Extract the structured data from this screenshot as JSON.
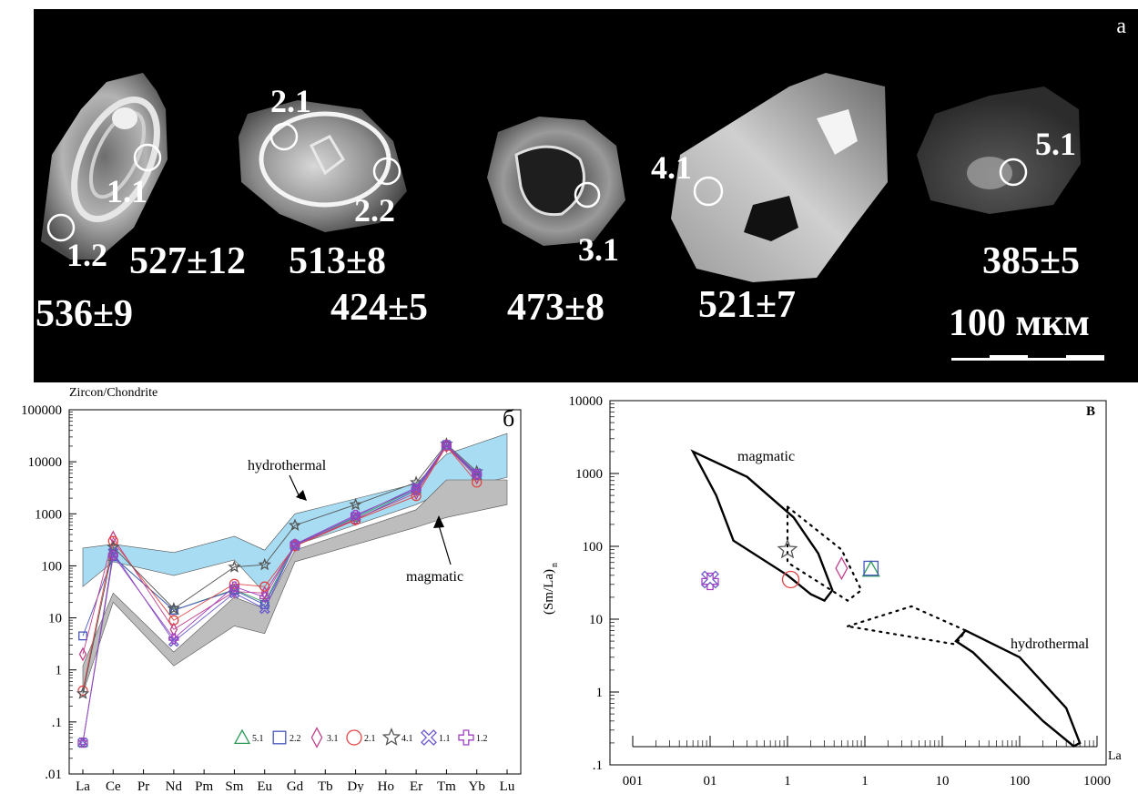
{
  "colors": {
    "hydrothermal_field": "#a8dcf2",
    "magmatic_field": "#bdbdbd",
    "s5_1": "#2e9a58",
    "s2_2": "#4455bb",
    "s3_1": "#c0408a",
    "s2_1": "#e04545",
    "s4_1": "#555555",
    "s1_1": "#6a5acd",
    "s1_2": "#a040c0"
  },
  "panel_a": {
    "letter": "а",
    "scale_bar_label": "100 мкм",
    "grains": [
      {
        "spots": [
          {
            "label": "1.1",
            "age": "527±12"
          },
          {
            "label": "1.2",
            "age": "536±9"
          }
        ]
      },
      {
        "spots": [
          {
            "label": "2.1",
            "age": "513±8"
          },
          {
            "label": "2.2",
            "age": "424±5"
          }
        ]
      },
      {
        "spots": [
          {
            "label": "3.1",
            "age": "473±8"
          }
        ]
      },
      {
        "spots": [
          {
            "label": "4.1",
            "age": "521±7"
          }
        ]
      },
      {
        "spots": [
          {
            "label": "5.1",
            "age": "385±5"
          }
        ]
      }
    ]
  },
  "chart_data": [
    {
      "type": "line",
      "panel_letter": "б",
      "ylabel": "Zircon/Chondrite",
      "yscale": "log",
      "ylim": [
        0.01,
        100000
      ],
      "y_tick_labels": [
        "100000",
        "10000",
        "1000",
        "100",
        "10",
        "1",
        ".1",
        ".01"
      ],
      "categories": [
        "La",
        "Ce",
        "Pr",
        "Nd",
        "Pm",
        "Sm",
        "Eu",
        "Gd",
        "Tb",
        "Dy",
        "Ho",
        "Er",
        "Tm",
        "Yb",
        "Lu"
      ],
      "annotations": [
        "hydrothermal",
        "magmatic"
      ],
      "fields": [
        {
          "name": "hydrothermal",
          "upper": {
            "x": [
              "La",
              "Ce",
              "Nd",
              "Sm",
              "Eu",
              "Gd",
              "Er",
              "Tm",
              "Lu"
            ],
            "y": [
              220,
              260,
              180,
              370,
              200,
              1000,
              3800,
              14000,
              35000
            ]
          },
          "lower": {
            "x": [
              "La",
              "Ce",
              "Nd",
              "Sm",
              "Eu",
              "Gd",
              "Er",
              "Tm",
              "Lu"
            ],
            "y": [
              40,
              120,
              65,
              130,
              30,
              250,
              1500,
              2800,
              5000
            ]
          }
        },
        {
          "name": "magmatic",
          "upper": {
            "x": [
              "La",
              "Ce",
              "Nd",
              "Sm",
              "Eu",
              "Gd",
              "Er",
              "Tm",
              "Lu"
            ],
            "y": [
              1.2,
              30,
              2.2,
              25,
              15,
              200,
              1200,
              4500,
              4500
            ]
          },
          "lower": {
            "x": [
              "La",
              "Ce",
              "Nd",
              "Sm",
              "Eu",
              "Gd",
              "Er",
              "Tm",
              "Lu"
            ],
            "y": [
              0.35,
              20,
              1.2,
              7,
              5,
              120,
              550,
              850,
              1500
            ]
          }
        }
      ],
      "legend_position": "bottom-right",
      "series": [
        {
          "name": "5.1",
          "marker": "triangle",
          "x": [
            "La",
            "Ce",
            "Nd",
            "Sm",
            "Eu",
            "Gd",
            "Dy",
            "Er",
            "Tm",
            "Yb"
          ],
          "y": [
            0.04,
            150,
            14,
            35,
            20,
            260,
            850,
            3000,
            21000,
            5500
          ]
        },
        {
          "name": "2.2",
          "marker": "square",
          "x": [
            "La",
            "Ce",
            "Nd",
            "Sm",
            "Eu",
            "Gd",
            "Dy",
            "Er",
            "Tm",
            "Yb"
          ],
          "y": [
            4.5,
            150,
            14,
            34,
            18,
            240,
            780,
            2800,
            20000,
            5500
          ]
        },
        {
          "name": "3.1",
          "marker": "diamond",
          "x": [
            "La",
            "Ce",
            "Nd",
            "Sm",
            "Eu",
            "Gd",
            "Dy",
            "Er",
            "Tm",
            "Yb"
          ],
          "y": [
            2,
            350,
            6,
            32,
            30,
            250,
            800,
            2500,
            20000,
            5000
          ]
        },
        {
          "name": "2.1",
          "marker": "circle",
          "x": [
            "La",
            "Ce",
            "Nd",
            "Sm",
            "Eu",
            "Gd",
            "Dy",
            "Er",
            "Tm",
            "Yb"
          ],
          "y": [
            0.4,
            300,
            9,
            45,
            40,
            240,
            760,
            2200,
            20000,
            4000
          ]
        },
        {
          "name": "4.1",
          "marker": "star",
          "x": [
            "La",
            "Ce",
            "Nd",
            "Sm",
            "Eu",
            "Gd",
            "Dy",
            "Er",
            "Tm",
            "Yb"
          ],
          "y": [
            0.35,
            230,
            15,
            95,
            105,
            600,
            1500,
            4000,
            22000,
            6500
          ]
        },
        {
          "name": "1.1",
          "marker": "x",
          "x": [
            "La",
            "Ce",
            "Nd",
            "Sm",
            "Eu",
            "Gd",
            "Dy",
            "Er",
            "Tm",
            "Yb"
          ],
          "y": [
            0.04,
            180,
            3.5,
            30,
            15,
            250,
            900,
            3200,
            21000,
            6000
          ]
        },
        {
          "name": "1.2",
          "marker": "cross",
          "x": [
            "La",
            "Ce",
            "Nd",
            "Sm",
            "Eu",
            "Gd",
            "Dy",
            "Er",
            "Tm",
            "Yb"
          ],
          "y": [
            0.04,
            160,
            4,
            40,
            25,
            260,
            950,
            3000,
            21000,
            5800
          ]
        }
      ]
    },
    {
      "type": "scatter",
      "panel_letter": "B",
      "xlabel": "La",
      "ylabel": "(Sm/La)",
      "ylabel_subscript": "n",
      "xscale": "log",
      "yscale": "log",
      "xlim": [
        0.001,
        1000
      ],
      "ylim": [
        0.1,
        10000
      ],
      "x_tick_labels": [
        "001",
        "01",
        "1",
        "1",
        "10",
        "100",
        "1000"
      ],
      "y_tick_labels": [
        "10000",
        "1000",
        "100",
        "10",
        "1",
        ".1"
      ],
      "annotations": [
        "magmatic",
        "hydrothermal"
      ],
      "fields": [
        {
          "name": "magmatic",
          "style": "solid",
          "x": [
            0.006,
            0.03,
            0.12,
            0.25,
            0.38,
            0.3,
            0.2,
            0.1,
            0.02,
            0.012,
            0.006
          ],
          "y": [
            2000,
            900,
            250,
            80,
            25,
            18,
            22,
            40,
            120,
            500,
            2000
          ]
        },
        {
          "name": "magmatic-extension",
          "style": "dotted",
          "x": [
            0.1,
            0.5,
            0.9,
            0.6,
            0.1
          ],
          "y": [
            350,
            90,
            25,
            18,
            60
          ]
        },
        {
          "name": "hydrothermal",
          "style": "solid",
          "x": [
            20,
            100,
            400,
            600,
            500,
            200,
            25,
            15,
            20
          ],
          "y": [
            7,
            3,
            0.6,
            0.2,
            0.18,
            0.4,
            3.5,
            5,
            7
          ]
        },
        {
          "name": "hydrothermal-extension",
          "style": "dotted",
          "x": [
            0.6,
            4,
            20,
            15,
            0.6
          ],
          "y": [
            8,
            15,
            7,
            4.5,
            8
          ]
        }
      ],
      "series": [
        {
          "name": "5.1",
          "marker": "triangle",
          "x": [
            1.2
          ],
          "y": [
            48
          ]
        },
        {
          "name": "2.2",
          "marker": "square",
          "x": [
            1.2
          ],
          "y": [
            50
          ]
        },
        {
          "name": "3.1",
          "marker": "diamond",
          "x": [
            0.5
          ],
          "y": [
            50
          ]
        },
        {
          "name": "2.1",
          "marker": "circle",
          "x": [
            0.11
          ],
          "y": [
            35
          ]
        },
        {
          "name": "4.1",
          "marker": "star",
          "x": [
            0.1
          ],
          "y": [
            90
          ]
        },
        {
          "name": "1.1",
          "marker": "x",
          "x": [
            0.01
          ],
          "y": [
            35
          ]
        },
        {
          "name": "1.2",
          "marker": "cross",
          "x": [
            0.01
          ],
          "y": [
            33
          ]
        }
      ]
    }
  ]
}
